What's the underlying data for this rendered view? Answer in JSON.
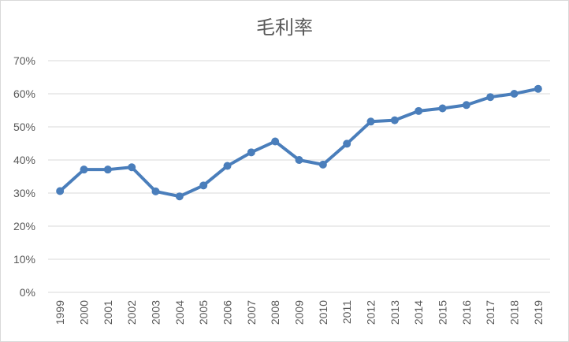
{
  "chart_data": {
    "type": "line",
    "title": "毛利率",
    "xlabel": "",
    "ylabel": "",
    "ylim": [
      0,
      0.7
    ],
    "y_ticks": [
      "0%",
      "10%",
      "20%",
      "30%",
      "40%",
      "50%",
      "60%",
      "70%"
    ],
    "grid": true,
    "legend": "none",
    "categories": [
      "1999",
      "2000",
      "2001",
      "2002",
      "2003",
      "2004",
      "2005",
      "2006",
      "2007",
      "2008",
      "2009",
      "2010",
      "2011",
      "2012",
      "2013",
      "2014",
      "2015",
      "2016",
      "2017",
      "2018",
      "2019"
    ],
    "series": [
      {
        "values": [
          0.306,
          0.371,
          0.371,
          0.378,
          0.305,
          0.29,
          0.323,
          0.382,
          0.423,
          0.456,
          0.4,
          0.386,
          0.449,
          0.516,
          0.52,
          0.548,
          0.556,
          0.566,
          0.59,
          0.6,
          0.615
        ],
        "color": "#4a7ebb"
      }
    ]
  }
}
